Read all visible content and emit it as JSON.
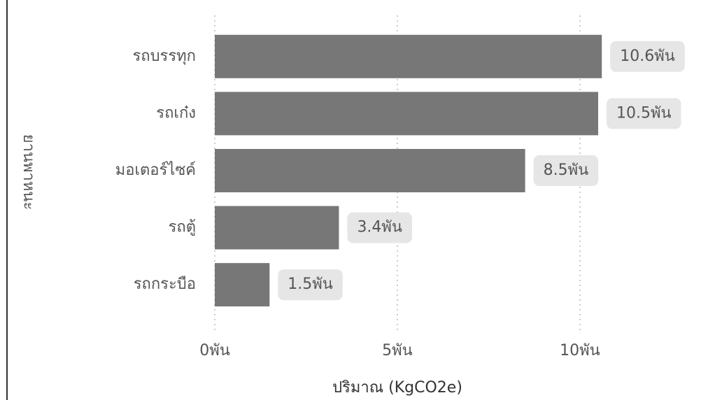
{
  "chart_data": {
    "type": "bar",
    "orientation": "horizontal",
    "x_label": "ปริมาณ (KgCO2e)",
    "y_label": "ยานพาหนะ",
    "categories": [
      "รถบรรทุก",
      "รถเก๋ง",
      "มอเตอร์ไซค์",
      "รถตู้",
      "รถกระบือ"
    ],
    "values": [
      10600,
      10500,
      8500,
      3400,
      1500
    ],
    "value_labels": [
      "10.6พัน",
      "10.5พัน",
      "8.5พัน",
      "3.4พัน",
      "1.5พัน"
    ],
    "color": "#777777",
    "xlim": [
      0,
      13700
    ],
    "xticks": [
      {
        "value": 0,
        "label": "0พัน"
      },
      {
        "value": 5000,
        "label": "5พัน"
      },
      {
        "value": 10000,
        "label": "10พัน"
      }
    ],
    "grid": true
  }
}
